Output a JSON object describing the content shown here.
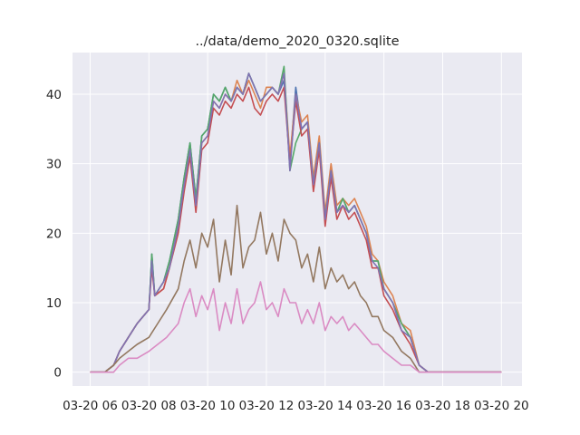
{
  "chart_data": {
    "type": "line",
    "title": "../data/demo_2020_0320.sqlite",
    "xlabel": "",
    "ylabel": "",
    "x_ticks": [
      "03-20 06",
      "03-20 08",
      "03-20 10",
      "03-20 12",
      "03-20 14",
      "03-20 16",
      "03-20 18",
      "03-20 20"
    ],
    "y_ticks": [
      0,
      10,
      20,
      30,
      40
    ],
    "xlim_hours": [
      5.4,
      20.7
    ],
    "ylim": [
      -2,
      46
    ],
    "grid": true,
    "background": "#eaeaf2",
    "colors": [
      "#4c72b0",
      "#dd8452",
      "#55a868",
      "#c44e52",
      "#8172b3",
      "#937860",
      "#da8bc3"
    ],
    "series": [
      {
        "color": "#4c72b0",
        "x": [
          6.0,
          6.5,
          6.8,
          7.0,
          7.3,
          7.6,
          8.0,
          8.1,
          8.2,
          8.5,
          8.7,
          9.0,
          9.2,
          9.4,
          9.6,
          9.8,
          10.0,
          10.2,
          10.4,
          10.6,
          10.8,
          11.0,
          11.2,
          11.4,
          11.6,
          11.8,
          12.0,
          12.2,
          12.4,
          12.6,
          12.8,
          13.0,
          13.2,
          13.4,
          13.6,
          13.8,
          14.0,
          14.2,
          14.4,
          14.6,
          14.8,
          15.0,
          15.2,
          15.4,
          15.6,
          15.8,
          16.0,
          16.3,
          16.6,
          16.9,
          17.2,
          17.5,
          18.0,
          19.0,
          20.0
        ],
        "y": [
          0,
          0,
          1,
          3,
          5,
          7,
          9,
          17,
          11,
          13,
          16,
          22,
          28,
          33,
          25,
          34,
          35,
          40,
          39,
          41,
          39,
          41,
          40,
          43,
          41,
          39,
          40,
          41,
          40,
          42,
          30,
          41,
          35,
          36,
          27,
          33,
          22,
          29,
          23,
          25,
          23,
          24,
          22,
          20,
          16,
          16,
          12,
          10,
          7,
          5,
          1,
          0,
          0,
          0,
          0
        ]
      },
      {
        "color": "#dd8452",
        "x": [
          6.0,
          6.5,
          6.8,
          7.0,
          7.3,
          7.6,
          8.0,
          8.1,
          8.2,
          8.5,
          8.7,
          9.0,
          9.2,
          9.4,
          9.6,
          9.8,
          10.0,
          10.2,
          10.4,
          10.6,
          10.8,
          11.0,
          11.2,
          11.4,
          11.6,
          11.8,
          12.0,
          12.2,
          12.4,
          12.6,
          12.8,
          13.0,
          13.2,
          13.4,
          13.6,
          13.8,
          14.0,
          14.2,
          14.4,
          14.6,
          14.8,
          15.0,
          15.2,
          15.4,
          15.6,
          15.8,
          16.0,
          16.3,
          16.6,
          16.9,
          17.2,
          17.5,
          18.0,
          19.0,
          20.0
        ],
        "y": [
          0,
          0,
          1,
          3,
          5,
          7,
          9,
          16,
          11,
          12,
          15,
          21,
          27,
          32,
          24,
          33,
          34,
          39,
          38,
          40,
          39,
          42,
          40,
          42,
          40,
          38,
          41,
          41,
          40,
          43,
          31,
          40,
          36,
          37,
          28,
          34,
          23,
          30,
          24,
          25,
          24,
          25,
          23,
          21,
          17,
          16,
          13,
          11,
          7,
          6,
          1,
          0,
          0,
          0,
          0
        ]
      },
      {
        "color": "#55a868",
        "x": [
          6.0,
          6.5,
          6.8,
          7.0,
          7.3,
          7.6,
          8.0,
          8.1,
          8.2,
          8.5,
          8.7,
          9.0,
          9.2,
          9.4,
          9.6,
          9.8,
          10.0,
          10.2,
          10.4,
          10.6,
          10.8,
          11.0,
          11.2,
          11.4,
          11.6,
          11.8,
          12.0,
          12.2,
          12.4,
          12.6,
          12.8,
          13.0,
          13.2,
          13.4,
          13.6,
          13.8,
          14.0,
          14.2,
          14.4,
          14.6,
          14.8,
          15.0,
          15.2,
          15.4,
          15.6,
          15.8,
          16.0,
          16.3,
          16.6,
          16.9,
          17.2,
          17.5,
          18.0,
          19.0,
          20.0
        ],
        "y": [
          0,
          0,
          1,
          3,
          5,
          7,
          9,
          17,
          11,
          13,
          16,
          22,
          28,
          33,
          25,
          34,
          35,
          40,
          39,
          41,
          39,
          41,
          40,
          43,
          41,
          39,
          40,
          41,
          40,
          44,
          29,
          33,
          35,
          36,
          27,
          33,
          22,
          29,
          23,
          25,
          23,
          24,
          22,
          20,
          16,
          16,
          12,
          10,
          7,
          5,
          1,
          0,
          0,
          0,
          0
        ]
      },
      {
        "color": "#c44e52",
        "x": [
          6.0,
          6.5,
          6.8,
          7.0,
          7.3,
          7.6,
          8.0,
          8.1,
          8.2,
          8.5,
          8.7,
          9.0,
          9.2,
          9.4,
          9.6,
          9.8,
          10.0,
          10.2,
          10.4,
          10.6,
          10.8,
          11.0,
          11.2,
          11.4,
          11.6,
          11.8,
          12.0,
          12.2,
          12.4,
          12.6,
          12.8,
          13.0,
          13.2,
          13.4,
          13.6,
          13.8,
          14.0,
          14.2,
          14.4,
          14.6,
          14.8,
          15.0,
          15.2,
          15.4,
          15.6,
          15.8,
          16.0,
          16.3,
          16.6,
          16.9,
          17.2,
          17.5,
          18.0,
          19.0,
          20.0
        ],
        "y": [
          0,
          0,
          1,
          3,
          5,
          7,
          9,
          15,
          11,
          12,
          15,
          20,
          26,
          31,
          23,
          32,
          33,
          38,
          37,
          39,
          38,
          40,
          39,
          41,
          38,
          37,
          39,
          40,
          39,
          41,
          30,
          39,
          34,
          35,
          26,
          32,
          21,
          28,
          22,
          24,
          22,
          23,
          21,
          19,
          15,
          15,
          11,
          9,
          6,
          4,
          1,
          0,
          0,
          0,
          0
        ]
      },
      {
        "color": "#8172b3",
        "x": [
          6.0,
          6.5,
          6.8,
          7.0,
          7.3,
          7.6,
          8.0,
          8.1,
          8.2,
          8.5,
          8.7,
          9.0,
          9.2,
          9.4,
          9.6,
          9.8,
          10.0,
          10.2,
          10.4,
          10.6,
          10.8,
          11.0,
          11.2,
          11.4,
          11.6,
          11.8,
          12.0,
          12.2,
          12.4,
          12.6,
          12.8,
          13.0,
          13.2,
          13.4,
          13.6,
          13.8,
          14.0,
          14.2,
          14.4,
          14.6,
          14.8,
          15.0,
          15.2,
          15.4,
          15.6,
          15.8,
          16.0,
          16.3,
          16.6,
          16.9,
          17.2,
          17.5,
          18.0,
          19.0,
          20.0
        ],
        "y": [
          0,
          0,
          1,
          3,
          5,
          7,
          9,
          16,
          11,
          13,
          15,
          21,
          27,
          32,
          24,
          33,
          34,
          39,
          38,
          40,
          39,
          41,
          40,
          43,
          41,
          39,
          40,
          41,
          40,
          43,
          29,
          40,
          35,
          36,
          27,
          33,
          22,
          29,
          23,
          24,
          23,
          24,
          22,
          20,
          16,
          15,
          12,
          10,
          6,
          5,
          1,
          0,
          0,
          0,
          0
        ]
      },
      {
        "color": "#937860",
        "x": [
          6.0,
          6.5,
          6.8,
          7.0,
          7.3,
          7.6,
          8.0,
          8.3,
          8.6,
          9.0,
          9.2,
          9.4,
          9.6,
          9.8,
          10.0,
          10.2,
          10.4,
          10.6,
          10.8,
          11.0,
          11.2,
          11.4,
          11.6,
          11.8,
          12.0,
          12.2,
          12.4,
          12.6,
          12.8,
          13.0,
          13.2,
          13.4,
          13.6,
          13.8,
          14.0,
          14.2,
          14.4,
          14.6,
          14.8,
          15.0,
          15.2,
          15.4,
          15.6,
          15.8,
          16.0,
          16.3,
          16.6,
          16.9,
          17.2,
          17.5,
          18.0,
          19.0,
          20.0
        ],
        "y": [
          0,
          0,
          1,
          2,
          3,
          4,
          5,
          7,
          9,
          12,
          16,
          19,
          15,
          20,
          18,
          22,
          13,
          19,
          14,
          24,
          15,
          18,
          19,
          23,
          17,
          20,
          16,
          22,
          20,
          19,
          15,
          17,
          13,
          18,
          12,
          15,
          13,
          14,
          12,
          13,
          11,
          10,
          8,
          8,
          6,
          5,
          3,
          2,
          0,
          0,
          0,
          0,
          0
        ]
      },
      {
        "color": "#da8bc3",
        "x": [
          6.0,
          6.5,
          6.8,
          7.0,
          7.3,
          7.6,
          8.0,
          8.3,
          8.6,
          9.0,
          9.2,
          9.4,
          9.6,
          9.8,
          10.0,
          10.2,
          10.4,
          10.6,
          10.8,
          11.0,
          11.2,
          11.4,
          11.6,
          11.8,
          12.0,
          12.2,
          12.4,
          12.6,
          12.8,
          13.0,
          13.2,
          13.4,
          13.6,
          13.8,
          14.0,
          14.2,
          14.4,
          14.6,
          14.8,
          15.0,
          15.2,
          15.4,
          15.6,
          15.8,
          16.0,
          16.3,
          16.6,
          16.9,
          17.2,
          17.5,
          18.0,
          19.0,
          20.0
        ],
        "y": [
          0,
          0,
          0,
          1,
          2,
          2,
          3,
          4,
          5,
          7,
          10,
          12,
          8,
          11,
          9,
          12,
          6,
          10,
          7,
          12,
          7,
          9,
          10,
          13,
          9,
          10,
          8,
          12,
          10,
          10,
          7,
          9,
          7,
          10,
          6,
          8,
          7,
          8,
          6,
          7,
          6,
          5,
          4,
          4,
          3,
          2,
          1,
          1,
          0,
          0,
          0,
          0,
          0
        ]
      }
    ]
  }
}
